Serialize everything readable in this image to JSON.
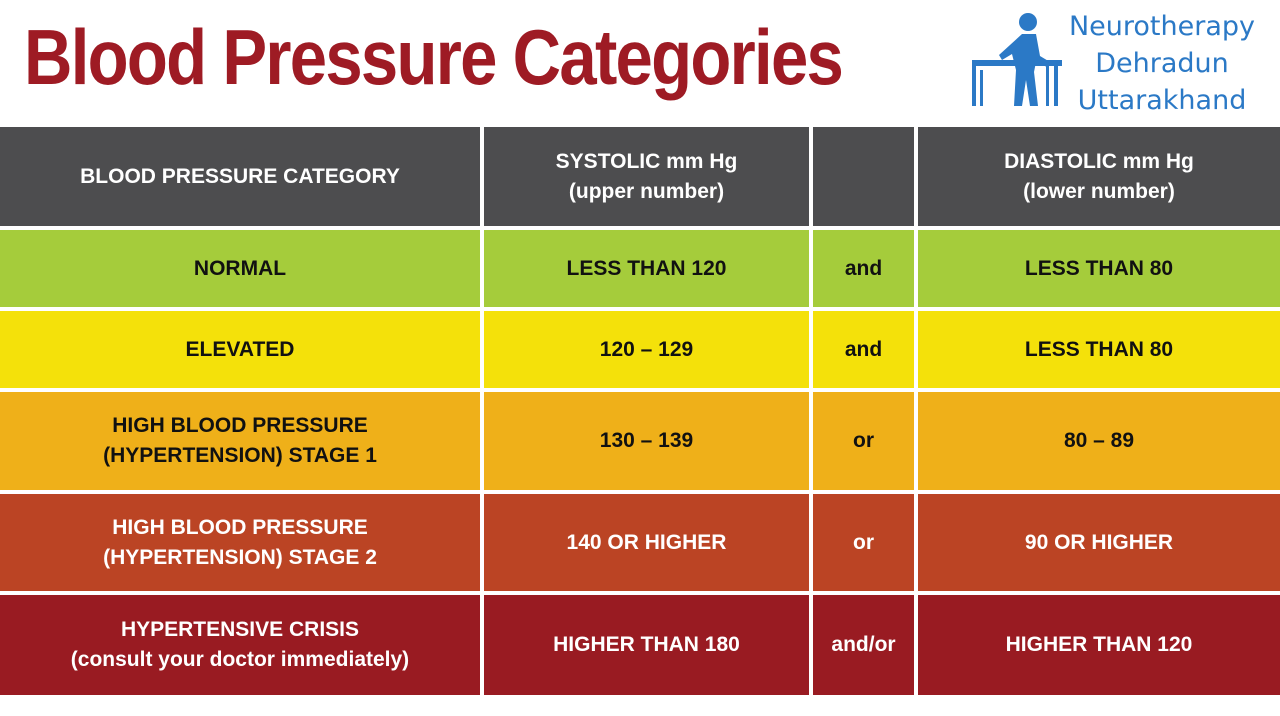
{
  "title": "Blood Pressure Categories",
  "brand": {
    "line1": "Neurotherapy",
    "line2": "Dehradun",
    "line3": "Uttarakhand",
    "icon": "therapist-at-table-icon",
    "color": "#2b79c6"
  },
  "table": {
    "header": {
      "category": "BLOOD PRESSURE CATEGORY",
      "systolic_line1": "SYSTOLIC mm Hg",
      "systolic_line2": "(upper number)",
      "connector": "",
      "diastolic_line1": "DIASTOLIC mm Hg",
      "diastolic_line2": "(lower number)"
    },
    "rows": [
      {
        "category_line1": "NORMAL",
        "category_line2": "",
        "systolic": "LESS THAN 120",
        "connector": "and",
        "diastolic": "LESS THAN 80",
        "color": "#a5cc3b"
      },
      {
        "category_line1": "ELEVATED",
        "category_line2": "",
        "systolic": "120 – 129",
        "connector": "and",
        "diastolic": "LESS THAN 80",
        "color": "#f4e10a"
      },
      {
        "category_line1": "HIGH BLOOD PRESSURE",
        "category_line2": "(HYPERTENSION) STAGE 1",
        "systolic": "130 – 139",
        "connector": "or",
        "diastolic": "80 – 89",
        "color": "#efb019"
      },
      {
        "category_line1": "HIGH BLOOD PRESSURE",
        "category_line2": "(HYPERTENSION) STAGE 2",
        "systolic": "140 OR HIGHER",
        "connector": "or",
        "diastolic": "90 OR HIGHER",
        "color": "#bb4424"
      },
      {
        "category_line1": "HYPERTENSIVE CRISIS",
        "category_line2": "(consult your doctor immediately)",
        "systolic": "HIGHER THAN 180",
        "connector": "and/or",
        "diastolic": "HIGHER THAN 120",
        "color": "#991b22"
      }
    ]
  },
  "colors": {
    "title": "#9e1b24",
    "header_bg": "#4d4d4f"
  }
}
